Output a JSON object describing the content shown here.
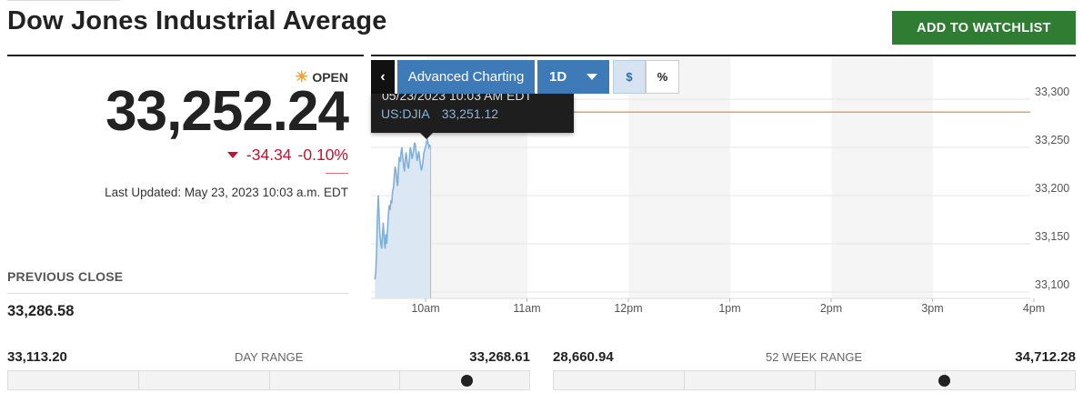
{
  "header": {
    "title": "Dow Jones Industrial Average",
    "watchlist_label": "ADD TO WATCHLIST"
  },
  "quote": {
    "status": "OPEN",
    "price": "33,252.24",
    "change": "-34.34",
    "change_pct": "-0.10%",
    "last_updated": "Last Updated: May 23, 2023 10:03 a.m. EDT",
    "previous_close_label": "PREVIOUS CLOSE",
    "previous_close": "33,286.58"
  },
  "chart_controls": {
    "back": "‹",
    "advanced": "Advanced Charting",
    "range": "1D",
    "dollar": "$",
    "percent": "%"
  },
  "tooltip": {
    "date": "05/23/2023 10:03 AM EDT",
    "symbol": "US:DJIA",
    "value": "33,251.12"
  },
  "colors": {
    "accent": "#3f7ab8",
    "watchlist": "#2e7d32",
    "down": "#c8102e",
    "line": "#7fb0dc",
    "area": "#dbe8f3",
    "prev_close_line": "#e0a070"
  },
  "chart_data": {
    "type": "area",
    "x_ticks": [
      "10am",
      "11am",
      "12pm",
      "1pm",
      "2pm",
      "3pm",
      "4pm"
    ],
    "y_ticks": [
      "33,300",
      "33,250",
      "33,200",
      "33,150",
      "33,100"
    ],
    "ylim": [
      33100,
      33300
    ],
    "previous_close": 33286.58,
    "x_minutes": [
      0,
      0.5,
      1,
      1.5,
      2,
      2.5,
      3,
      3.5,
      4,
      4.5,
      5,
      5.5,
      6,
      6.5,
      7,
      7.5,
      8,
      8.5,
      9,
      9.5,
      10,
      10.5,
      11,
      11.5,
      12,
      12.5,
      13,
      13.5,
      14,
      14.5,
      15,
      15.5,
      16,
      16.5,
      17,
      17.5,
      18,
      18.5,
      19,
      19.5,
      20,
      20.5,
      21,
      21.5,
      22,
      22.5,
      23,
      23.5,
      24,
      24.5,
      25,
      25.5,
      26,
      26.5,
      27,
      27.5,
      28,
      28.5,
      29,
      29.5,
      30,
      30.5,
      31,
      31.5,
      32,
      32.5,
      33
    ],
    "values": [
      33113,
      33120,
      33140,
      33175,
      33200,
      33180,
      33160,
      33150,
      33145,
      33160,
      33172,
      33155,
      33145,
      33160,
      33150,
      33165,
      33180,
      33190,
      33185,
      33195,
      33192,
      33205,
      33208,
      33220,
      33230,
      33225,
      33215,
      33210,
      33230,
      33240,
      33235,
      33245,
      33250,
      33240,
      33232,
      33225,
      33238,
      33245,
      33236,
      33230,
      33228,
      33240,
      33250,
      33245,
      33238,
      33242,
      33248,
      33255,
      33252,
      33244,
      33236,
      33240,
      33246,
      33239,
      33232,
      33226,
      33230,
      33236,
      33244,
      33248,
      33250,
      33255,
      33258,
      33254,
      33250,
      33252,
      33251
    ]
  },
  "day_range": {
    "label": "DAY RANGE",
    "low": "33,113.20",
    "high": "33,268.61",
    "position": 0.88
  },
  "week52_range": {
    "label": "52 WEEK RANGE",
    "low": "28,660.94",
    "high": "34,712.28",
    "position": 0.75
  }
}
